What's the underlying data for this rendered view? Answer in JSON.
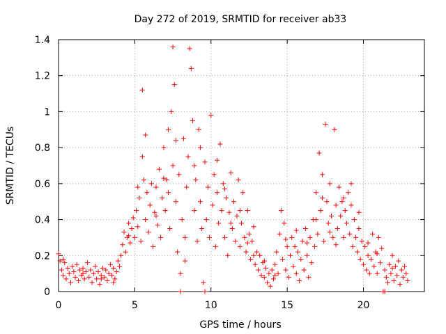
{
  "colors": {
    "series": "#ff0000",
    "grid": "#a0a0a0",
    "axis": "#000000"
  },
  "chart_data": {
    "type": "scatter",
    "title": "Day 272 of 2019, SRMTID for receiver ab33",
    "xlabel": "GPS time / hours",
    "ylabel": "SRMTID / TECUs",
    "xlim": [
      0,
      24
    ],
    "ylim": [
      0,
      1.4
    ],
    "grid": true,
    "legend": "none",
    "marker": "plus",
    "x_ticks": [
      0,
      5,
      10,
      15,
      20
    ],
    "x_tick_labels": [
      "0",
      "5",
      "10",
      "15",
      "20"
    ],
    "y_ticks": [
      0,
      0.2,
      0.4,
      0.6,
      0.8,
      1.0,
      1.2,
      1.4
    ],
    "y_tick_labels": [
      "0",
      "0.2",
      "0.4",
      "0.6",
      "0.8",
      "1",
      "1.2",
      "1.4"
    ],
    "series": [
      {
        "name": "SRMTID",
        "points": [
          [
            0.0,
            0.21
          ],
          [
            0.1,
            0.17
          ],
          [
            0.2,
            0.12
          ],
          [
            0.3,
            0.09
          ],
          [
            0.4,
            0.16
          ],
          [
            0.5,
            0.07
          ],
          [
            0.6,
            0.13
          ],
          [
            0.7,
            0.1
          ],
          [
            0.8,
            0.05
          ],
          [
            0.9,
            0.14
          ],
          [
            1.0,
            0.11
          ],
          [
            1.1,
            0.08
          ],
          [
            1.2,
            0.15
          ],
          [
            1.3,
            0.06
          ],
          [
            1.4,
            0.12
          ],
          [
            1.5,
            0.09
          ],
          [
            1.6,
            0.13
          ],
          [
            1.7,
            0.07
          ],
          [
            1.8,
            0.11
          ],
          [
            1.9,
            0.16
          ],
          [
            2.0,
            0.08
          ],
          [
            2.1,
            0.12
          ],
          [
            2.2,
            0.05
          ],
          [
            2.3,
            0.1
          ],
          [
            2.4,
            0.14
          ],
          [
            2.5,
            0.07
          ],
          [
            2.6,
            0.11
          ],
          [
            2.7,
            0.04
          ],
          [
            2.8,
            0.09
          ],
          [
            2.9,
            0.13
          ],
          [
            3.0,
            0.08
          ],
          [
            3.1,
            0.12
          ],
          [
            3.2,
            0.06
          ],
          [
            3.3,
            0.1
          ],
          [
            3.4,
            0.15
          ],
          [
            3.5,
            0.09
          ],
          [
            3.6,
            0.13
          ],
          [
            3.7,
            0.07
          ],
          [
            3.8,
            0.11
          ],
          [
            3.9,
            0.17
          ],
          [
            4.0,
            0.14
          ],
          [
            4.1,
            0.2
          ],
          [
            4.2,
            0.26
          ],
          [
            4.3,
            0.33
          ],
          [
            4.4,
            0.22
          ],
          [
            4.5,
            0.3
          ],
          [
            4.6,
            0.38
          ],
          [
            4.7,
            0.27
          ],
          [
            4.8,
            0.35
          ],
          [
            4.9,
            0.41
          ],
          [
            5.0,
            0.3
          ],
          [
            5.1,
            0.45
          ],
          [
            5.2,
            0.36
          ],
          [
            5.3,
            0.52
          ],
          [
            5.4,
            0.28
          ],
          [
            5.5,
            0.75
          ],
          [
            5.5,
            1.12
          ],
          [
            5.6,
            0.62
          ],
          [
            5.7,
            0.4
          ],
          [
            5.8,
            0.55
          ],
          [
            5.9,
            0.33
          ],
          [
            6.0,
            0.48
          ],
          [
            6.1,
            0.6
          ],
          [
            6.2,
            0.25
          ],
          [
            6.3,
            0.44
          ],
          [
            6.4,
            0.58
          ],
          [
            6.5,
            0.37
          ],
          [
            6.6,
            0.68
          ],
          [
            6.7,
            0.3
          ],
          [
            6.8,
            0.52
          ],
          [
            6.9,
            0.8
          ],
          [
            7.0,
            0.45
          ],
          [
            7.1,
            0.62
          ],
          [
            7.2,
            0.9
          ],
          [
            7.3,
            0.35
          ],
          [
            7.4,
            1.0
          ],
          [
            7.5,
            1.36
          ],
          [
            7.5,
            0.7
          ],
          [
            7.6,
            1.15
          ],
          [
            7.7,
            0.5
          ],
          [
            7.8,
            0.22
          ],
          [
            7.9,
            0.65
          ],
          [
            8.0,
            0.1
          ],
          [
            8.1,
            0.4
          ],
          [
            8.2,
            0.85
          ],
          [
            8.3,
            0.3
          ],
          [
            8.4,
            0.58
          ],
          [
            8.5,
            0.75
          ],
          [
            8.6,
            1.35
          ],
          [
            8.7,
            1.24
          ],
          [
            8.8,
            0.95
          ],
          [
            8.9,
            0.45
          ],
          [
            9.0,
            0.62
          ],
          [
            9.1,
            0.28
          ],
          [
            9.2,
            0.9
          ],
          [
            9.3,
            0.5
          ],
          [
            9.4,
            0.35
          ],
          [
            9.5,
            0.05
          ],
          [
            9.6,
            0.72
          ],
          [
            9.7,
            0.4
          ],
          [
            9.8,
            0.58
          ],
          [
            9.9,
            0.3
          ],
          [
            10.0,
            0.98
          ],
          [
            10.1,
            0.48
          ],
          [
            10.2,
            0.65
          ],
          [
            10.3,
            0.25
          ],
          [
            10.4,
            0.55
          ],
          [
            10.5,
            0.38
          ],
          [
            10.6,
            0.82
          ],
          [
            10.7,
            0.45
          ],
          [
            10.8,
            0.6
          ],
          [
            10.9,
            0.3
          ],
          [
            11.0,
            0.52
          ],
          [
            11.1,
            0.2
          ],
          [
            11.2,
            0.44
          ],
          [
            11.3,
            0.66
          ],
          [
            11.4,
            0.35
          ],
          [
            11.5,
            0.5
          ],
          [
            11.6,
            0.28
          ],
          [
            11.7,
            0.42
          ],
          [
            11.8,
            0.62
          ],
          [
            11.9,
            0.25
          ],
          [
            12.0,
            0.38
          ],
          [
            12.1,
            0.55
          ],
          [
            12.2,
            0.3
          ],
          [
            12.3,
            0.22
          ],
          [
            12.4,
            0.45
          ],
          [
            12.5,
            0.32
          ],
          [
            12.6,
            0.18
          ],
          [
            12.7,
            0.28
          ],
          [
            12.8,
            0.36
          ],
          [
            12.9,
            0.15
          ],
          [
            13.0,
            0.22
          ],
          [
            13.1,
            0.12
          ],
          [
            13.2,
            0.2
          ],
          [
            13.3,
            0.09
          ],
          [
            13.4,
            0.16
          ],
          [
            13.5,
            0.08
          ],
          [
            13.6,
            0.13
          ],
          [
            13.7,
            0.05
          ],
          [
            13.8,
            0.1
          ],
          [
            13.9,
            0.03
          ],
          [
            14.0,
            0.12
          ],
          [
            14.1,
            0.07
          ],
          [
            14.2,
            0.15
          ],
          [
            14.3,
            0.22
          ],
          [
            14.4,
            0.1
          ],
          [
            14.5,
            0.32
          ],
          [
            14.6,
            0.45
          ],
          [
            14.7,
            0.18
          ],
          [
            14.8,
            0.38
          ],
          [
            14.9,
            0.12
          ],
          [
            15.0,
            0.25
          ],
          [
            15.1,
            0.08
          ],
          [
            15.2,
            0.2
          ],
          [
            15.3,
            0.3
          ],
          [
            15.4,
            0.14
          ],
          [
            15.5,
            0.25
          ],
          [
            15.6,
            0.1
          ],
          [
            15.7,
            0.22
          ],
          [
            15.8,
            0.06
          ],
          [
            15.9,
            0.18
          ],
          [
            16.0,
            0.28
          ],
          [
            16.1,
            0.12
          ],
          [
            16.2,
            0.35
          ],
          [
            16.3,
            0.2
          ],
          [
            16.4,
            0.08
          ],
          [
            16.5,
            0.3
          ],
          [
            16.6,
            0.16
          ],
          [
            16.7,
            0.4
          ],
          [
            16.8,
            0.25
          ],
          [
            16.9,
            0.55
          ],
          [
            17.0,
            0.32
          ],
          [
            17.1,
            0.77
          ],
          [
            17.2,
            0.45
          ],
          [
            17.3,
            0.65
          ],
          [
            17.4,
            0.28
          ],
          [
            17.5,
            0.93
          ],
          [
            17.6,
            0.5
          ],
          [
            17.7,
            0.38
          ],
          [
            17.8,
            0.6
          ],
          [
            17.9,
            0.42
          ],
          [
            18.0,
            0.3
          ],
          [
            18.1,
            0.9
          ],
          [
            18.2,
            0.48
          ],
          [
            18.3,
            0.35
          ],
          [
            18.4,
            0.58
          ],
          [
            18.5,
            0.42
          ],
          [
            18.6,
            0.5
          ],
          [
            18.7,
            0.3
          ],
          [
            18.8,
            0.45
          ],
          [
            18.9,
            0.38
          ],
          [
            19.0,
            0.55
          ],
          [
            19.1,
            0.32
          ],
          [
            19.2,
            0.48
          ],
          [
            19.3,
            0.25
          ],
          [
            19.4,
            0.4
          ],
          [
            19.5,
            0.3
          ],
          [
            19.6,
            0.22
          ],
          [
            19.7,
            0.35
          ],
          [
            19.8,
            0.18
          ],
          [
            19.9,
            0.28
          ],
          [
            20.0,
            0.15
          ],
          [
            20.1,
            0.25
          ],
          [
            20.2,
            0.12
          ],
          [
            20.3,
            0.2
          ],
          [
            20.4,
            0.1
          ],
          [
            20.5,
            0.18
          ],
          [
            20.6,
            0.32
          ],
          [
            20.7,
            0.14
          ],
          [
            20.8,
            0.22
          ],
          [
            20.9,
            0.1
          ],
          [
            21.0,
            0.3
          ],
          [
            21.1,
            0.16
          ],
          [
            21.2,
            0.24
          ],
          [
            21.3,
            0.0
          ],
          [
            21.4,
            0.12
          ],
          [
            21.5,
            0.08
          ],
          [
            21.6,
            0.05
          ],
          [
            21.7,
            0.15
          ],
          [
            21.8,
            0.1
          ],
          [
            21.9,
            0.2
          ],
          [
            22.0,
            0.06
          ],
          [
            22.1,
            0.14
          ],
          [
            22.2,
            0.09
          ],
          [
            22.3,
            0.17
          ],
          [
            22.4,
            0.04
          ],
          [
            22.5,
            0.12
          ],
          [
            22.6,
            0.08
          ],
          [
            22.7,
            0.14
          ],
          [
            22.8,
            0.1
          ],
          [
            22.9,
            0.06
          ],
          [
            8.0,
            0.0
          ],
          [
            9.6,
            0.0
          ],
          [
            21.4,
            0.0
          ],
          [
            0.3,
            0.18
          ],
          [
            1.6,
            0.1
          ],
          [
            2.8,
            0.07
          ],
          [
            3.6,
            0.05
          ],
          [
            4.6,
            0.31
          ],
          [
            5.2,
            0.58
          ],
          [
            5.7,
            0.87
          ],
          [
            6.4,
            0.42
          ],
          [
            6.9,
            0.63
          ],
          [
            7.2,
            0.55
          ],
          [
            7.7,
            0.84
          ],
          [
            8.3,
            0.17
          ],
          [
            8.9,
            0.7
          ],
          [
            9.3,
            0.8
          ],
          [
            10.4,
            0.73
          ],
          [
            10.9,
            0.57
          ],
          [
            11.3,
            0.38
          ],
          [
            11.9,
            0.45
          ],
          [
            12.4,
            0.27
          ],
          [
            12.8,
            0.2
          ],
          [
            13.5,
            0.17
          ],
          [
            14.2,
            0.09
          ],
          [
            14.9,
            0.29
          ],
          [
            15.6,
            0.34
          ],
          [
            16.3,
            0.27
          ],
          [
            16.9,
            0.4
          ],
          [
            17.3,
            0.52
          ],
          [
            17.8,
            0.33
          ],
          [
            18.2,
            0.26
          ],
          [
            18.7,
            0.52
          ],
          [
            19.2,
            0.6
          ],
          [
            19.7,
            0.44
          ],
          [
            20.3,
            0.27
          ],
          [
            20.9,
            0.21
          ],
          [
            21.9,
            0.13
          ]
        ]
      }
    ]
  }
}
